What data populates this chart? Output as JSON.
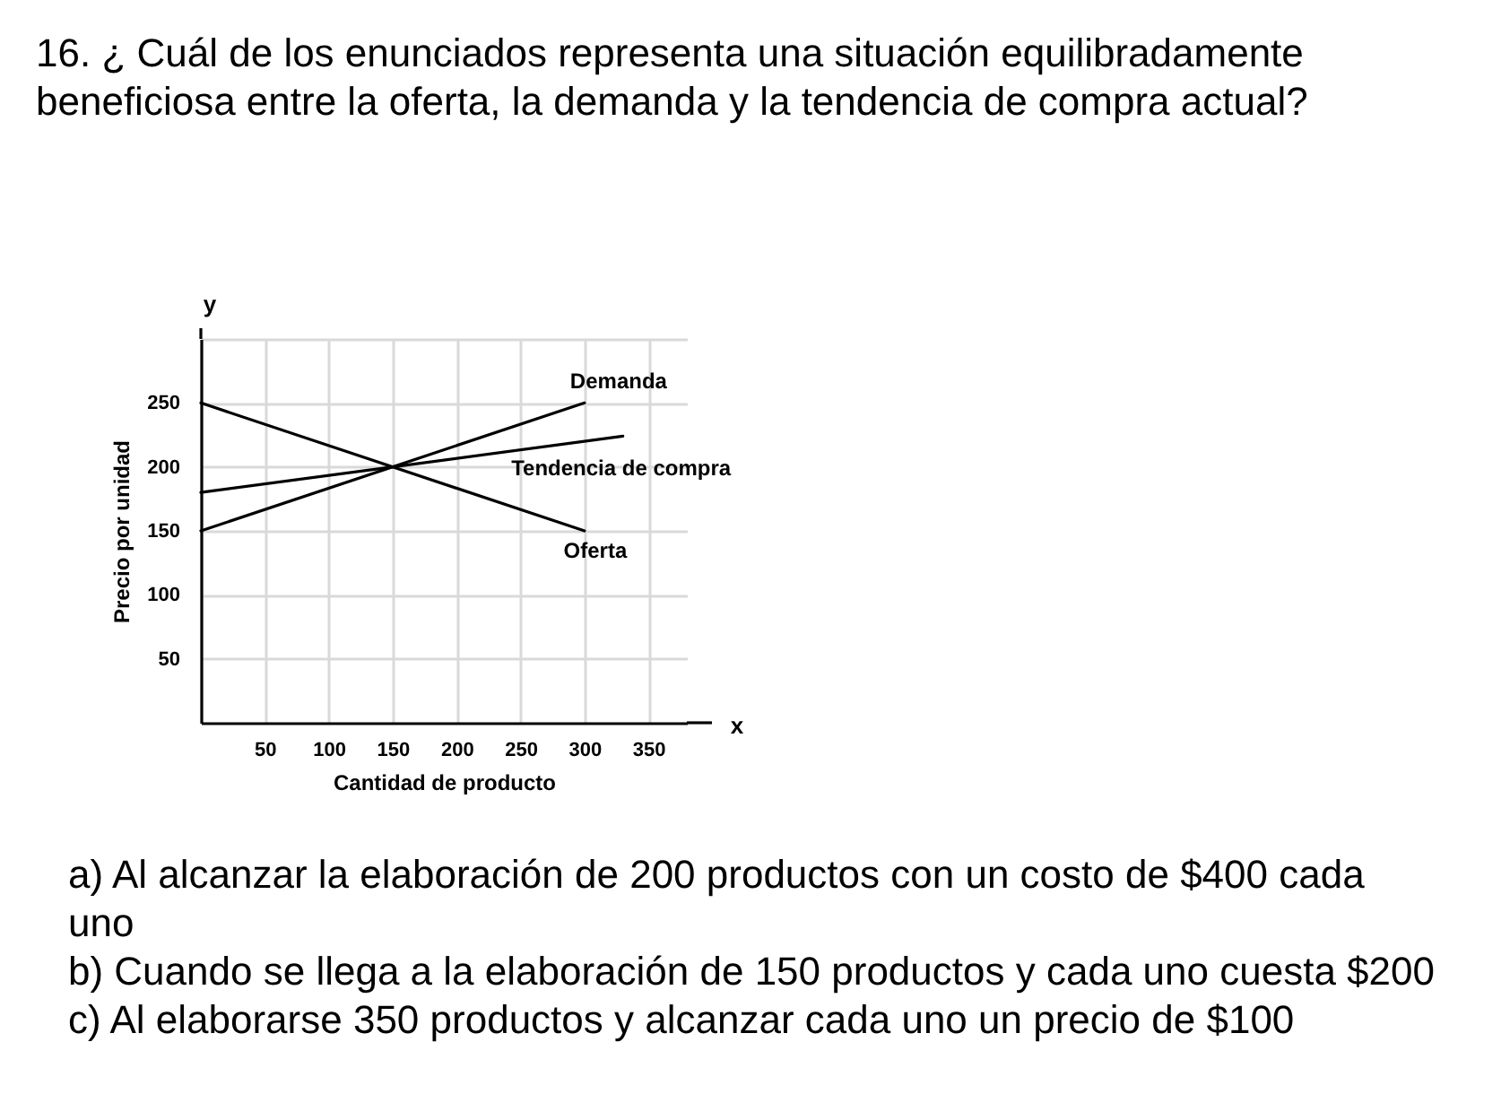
{
  "chart_data": {
    "type": "line",
    "title": "16. ¿ Cuál de los enunciados representa una situación equilibradamente beneficiosa entre la oferta, la demanda y la tendencia de compra actual?",
    "xlabel": "Cantidad de producto",
    "ylabel": "Precio por unidad",
    "xlim": [
      0,
      380
    ],
    "ylim": [
      0,
      300
    ],
    "xticks": [
      50,
      100,
      150,
      200,
      250,
      300,
      350
    ],
    "yticks": [
      50,
      100,
      150,
      200,
      250,
      {
        "value": 300,
        "label": null
      }
    ],
    "grid": true,
    "line_style": "solid",
    "series": [
      {
        "name": "Oferta",
        "color": "#000000",
        "x": [
          0,
          300
        ],
        "values": [
          250,
          150
        ]
      },
      {
        "name": "Demanda",
        "color": "#000000",
        "x": [
          0,
          300
        ],
        "values": [
          150,
          250
        ]
      },
      {
        "name": "Tendencia de compra",
        "color": "#000000",
        "x": [
          0,
          330
        ],
        "values": [
          180,
          224
        ]
      }
    ],
    "annotations": [
      "y",
      "x",
      "a) Al alcanzar la elaboración de 200 productos con un costo de $400 cada uno",
      "b) Cuando se llega a la elaboración de 150 productos y cada uno cuesta $200",
      "c) Al elaborarse 350 productos y alcanzar cada uno un precio de $100"
    ]
  }
}
